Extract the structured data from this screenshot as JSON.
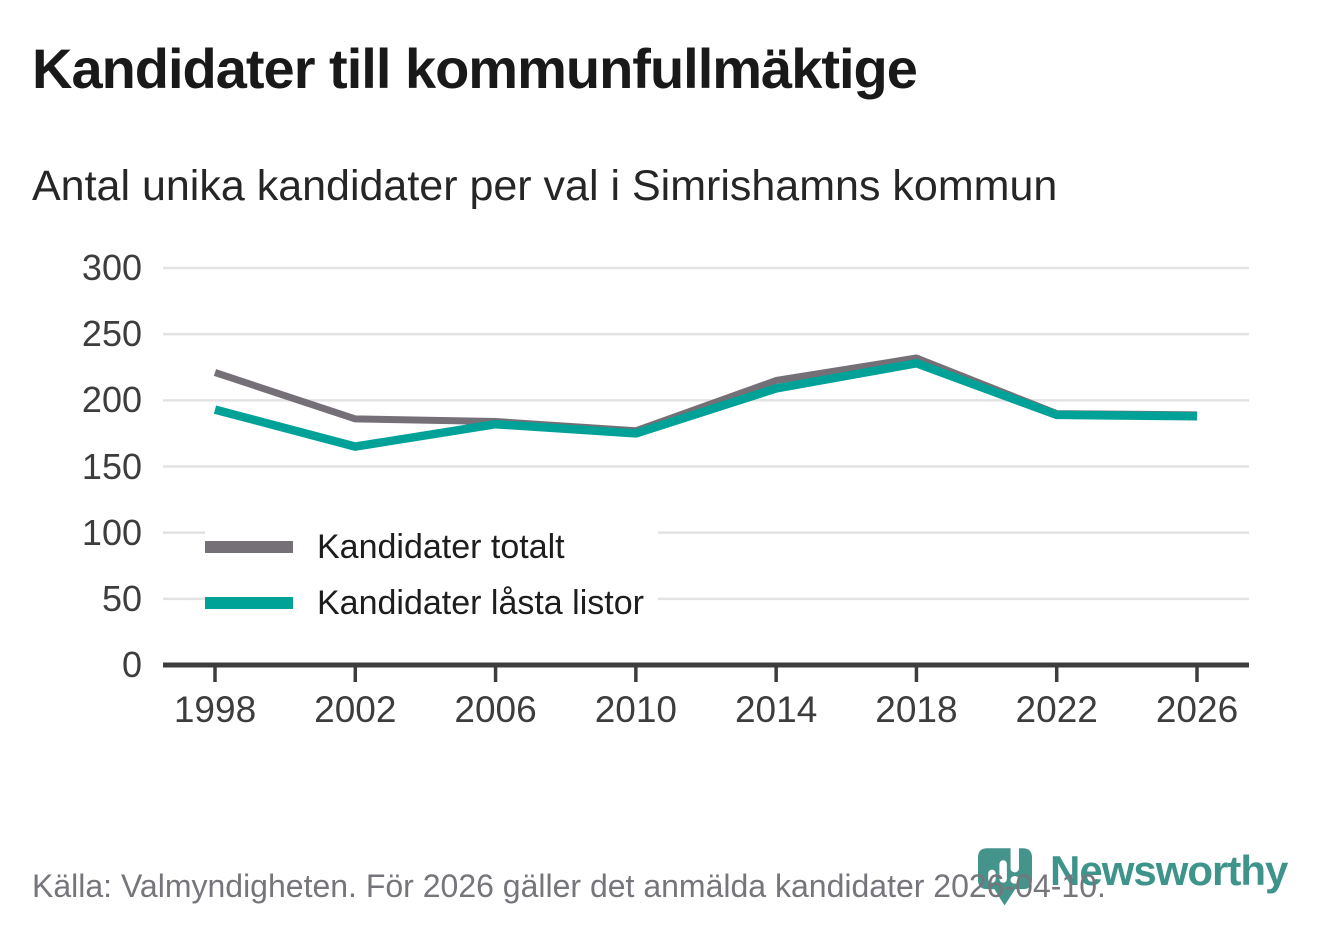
{
  "chart_data": {
    "type": "line",
    "title": "Kandidater till kommunfullmäktige",
    "subtitle": "Antal unika kandidater per val i Simrishamns kommun",
    "x": [
      1998,
      2002,
      2006,
      2010,
      2014,
      2018,
      2022,
      2026
    ],
    "series": [
      {
        "name": "Kandidater totalt",
        "color": "#757077",
        "values": [
          221,
          186,
          184,
          177,
          215,
          232,
          190,
          189
        ]
      },
      {
        "name": "Kandidater låsta listor",
        "color": "#00A298",
        "values": [
          193,
          165,
          182,
          175,
          209,
          228,
          189,
          188
        ]
      }
    ],
    "ylim": [
      0,
      300
    ],
    "yticks": [
      0,
      50,
      100,
      150,
      200,
      250,
      300
    ],
    "grid": true,
    "grid_color": "#E3E3E3",
    "axis_color": "#3D3D3D",
    "legend_position": "inside-bottom-left"
  },
  "footer": {
    "source_note": "Källa: Valmyndigheten. För 2026 gäller det anmälda kandidater 2026-04-10."
  },
  "logo": {
    "wordmark": "Newsworthy",
    "icon": "newsworthy-pin-bar-chart-icon",
    "color": "#3E948B"
  }
}
